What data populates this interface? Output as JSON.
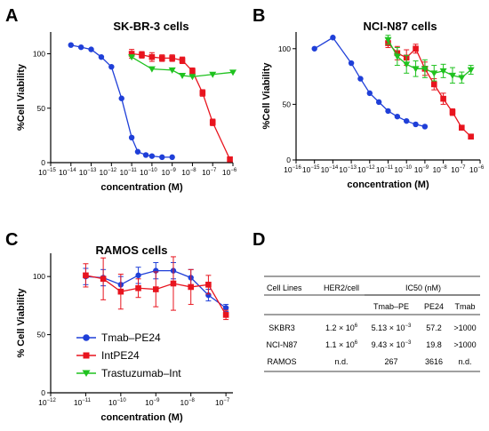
{
  "panels": {
    "A": {
      "letter": "A"
    },
    "B": {
      "letter": "B"
    },
    "C": {
      "letter": "C"
    },
    "D": {
      "letter": "D"
    }
  },
  "chart_data": [
    {
      "id": "A",
      "type": "line",
      "title": "SK-BR-3 cells",
      "xlabel": "concentration (M)",
      "ylabel": "%Cell Viability",
      "x_scale": "log10",
      "xlim_exp": [
        -15,
        -6
      ],
      "x_tick_exps": [
        -15,
        -14,
        -13,
        -12,
        -11,
        -10,
        -9,
        -8,
        -7,
        -6
      ],
      "ylim": [
        0,
        120
      ],
      "y_ticks": [
        0,
        50,
        100
      ],
      "grid": false,
      "series": [
        {
          "key": "tmab_pe24",
          "color": "#1f3fd8",
          "marker": "circle",
          "points": [
            [
              -14,
              108
            ],
            [
              -13.5,
              106
            ],
            [
              -13,
              104
            ],
            [
              -12.5,
              97
            ],
            [
              -12,
              88
            ],
            [
              -11.5,
              59
            ],
            [
              -11,
              23
            ],
            [
              -10.7,
              10
            ],
            [
              -10.3,
              7
            ],
            [
              -10,
              6
            ],
            [
              -9.5,
              5
            ],
            [
              -9,
              5
            ]
          ]
        },
        {
          "key": "intpe24",
          "color": "#e8141e",
          "marker": "square",
          "points": [
            [
              -11,
              100
            ],
            [
              -10.5,
              99
            ],
            [
              -10,
              97
            ],
            [
              -9.5,
              96
            ],
            [
              -9,
              96
            ],
            [
              -8.5,
              94
            ],
            [
              -8,
              84
            ],
            [
              -7.5,
              64
            ],
            [
              -7,
              37
            ],
            [
              -6.15,
              3
            ]
          ],
          "err": [
            4,
            3,
            4,
            3,
            3,
            3,
            3,
            3,
            3,
            2
          ]
        },
        {
          "key": "trastuzumab_int",
          "color": "#1fc21f",
          "marker": "triangle-down",
          "points": [
            [
              -11,
              97
            ],
            [
              -10,
              86
            ],
            [
              -9,
              85
            ],
            [
              -8.5,
              80
            ],
            [
              -8,
              79
            ],
            [
              -7,
              81
            ],
            [
              -6,
              83
            ]
          ]
        }
      ]
    },
    {
      "id": "B",
      "type": "line",
      "title": "NCI-N87 cells",
      "xlabel": "concentration (M)",
      "ylabel": "%Cell Viability",
      "x_scale": "log10",
      "xlim_exp": [
        -16,
        -6
      ],
      "x_tick_exps": [
        -16,
        -15,
        -14,
        -13,
        -12,
        -11,
        -10,
        -9,
        -8,
        -7,
        -6
      ],
      "ylim": [
        0,
        115
      ],
      "y_ticks": [
        0,
        50,
        100
      ],
      "grid": false,
      "series": [
        {
          "key": "tmab_pe24",
          "color": "#1f3fd8",
          "marker": "circle",
          "points": [
            [
              -15,
              100
            ],
            [
              -14,
              110
            ],
            [
              -13,
              87
            ],
            [
              -12.5,
              73
            ],
            [
              -12,
              60
            ],
            [
              -11.5,
              52
            ],
            [
              -11,
              44
            ],
            [
              -10.5,
              39
            ],
            [
              -10,
              35
            ],
            [
              -9.5,
              32
            ],
            [
              -9,
              30
            ]
          ]
        },
        {
          "key": "intpe24",
          "color": "#e8141e",
          "marker": "square",
          "points": [
            [
              -11,
              105
            ],
            [
              -10.5,
              96
            ],
            [
              -10,
              92
            ],
            [
              -9.5,
              100
            ],
            [
              -9,
              82
            ],
            [
              -8.5,
              68
            ],
            [
              -8,
              55
            ],
            [
              -7.5,
              43
            ],
            [
              -7,
              29
            ],
            [
              -6.5,
              21
            ]
          ],
          "err": [
            4,
            6,
            7,
            4,
            6,
            5,
            5,
            3,
            2,
            2
          ]
        },
        {
          "key": "trastuzumab_int",
          "color": "#1fc21f",
          "marker": "triangle-down",
          "points": [
            [
              -11,
              108
            ],
            [
              -10.5,
              93
            ],
            [
              -10,
              86
            ],
            [
              -9.5,
              82
            ],
            [
              -9,
              82
            ],
            [
              -8.5,
              78
            ],
            [
              -8,
              80
            ],
            [
              -7.5,
              76
            ],
            [
              -7,
              74
            ],
            [
              -6.5,
              81
            ]
          ],
          "err": [
            4,
            8,
            8,
            7,
            8,
            7,
            6,
            7,
            5,
            4
          ]
        }
      ]
    },
    {
      "id": "C",
      "type": "line",
      "title": "RAMOS cells",
      "xlabel": "concentration (M)",
      "ylabel": "% Cell Viability",
      "x_scale": "log10",
      "xlim_exp": [
        -12,
        -6.8
      ],
      "x_tick_exps": [
        -12,
        -11,
        -10,
        -9,
        -8,
        -7
      ],
      "ylim": [
        0,
        120
      ],
      "y_ticks": [
        0,
        50,
        100
      ],
      "grid": false,
      "legend_position": "bottom-left",
      "series": [
        {
          "key": "tmab_pe24",
          "name": "Tmab–PE24",
          "color": "#1f3fd8",
          "marker": "circle",
          "points": [
            [
              -11,
              100
            ],
            [
              -10.5,
              99
            ],
            [
              -10,
              93
            ],
            [
              -9.5,
              101
            ],
            [
              -9,
              105
            ],
            [
              -8.5,
              105
            ],
            [
              -8,
              99
            ],
            [
              -7.5,
              84
            ],
            [
              -7,
              73
            ]
          ],
          "err": [
            7,
            7,
            7,
            7,
            7,
            7,
            7,
            5,
            3
          ]
        },
        {
          "key": "intpe24",
          "name": "IntPE24",
          "color": "#e8141e",
          "marker": "square",
          "points": [
            [
              -11,
              101
            ],
            [
              -10.5,
              98
            ],
            [
              -10,
              87
            ],
            [
              -9.5,
              90
            ],
            [
              -9,
              89
            ],
            [
              -8.5,
              94
            ],
            [
              -8,
              91
            ],
            [
              -7.5,
              93
            ],
            [
              -7,
              67
            ]
          ],
          "err": [
            10,
            18,
            15,
            8,
            15,
            23,
            15,
            8,
            4
          ]
        },
        {
          "key": "trastuzumab_int",
          "name": "Trastuzumab–Int",
          "color": "#1fc21f",
          "marker": "triangle-down",
          "points": []
        }
      ]
    },
    {
      "id": "D",
      "type": "table",
      "group_header": "IC50 (nM)",
      "columns": [
        "Cell Lines",
        "HER2/cell",
        "Tmab–PE",
        "PE24",
        "Tmab"
      ],
      "rows": [
        {
          "cell_line": "SKBR3",
          "her2_base": "1.2 × 10",
          "her2_exp": "6",
          "tmab_pe_base": "5.13 × 10",
          "tmab_pe_exp": "−3",
          "pe24": "57.2",
          "tmab": ">1000"
        },
        {
          "cell_line": "NCI-N87",
          "her2_base": "1.1 × 10",
          "her2_exp": "6",
          "tmab_pe_base": "9.43 × 10",
          "tmab_pe_exp": "−3",
          "pe24": "19.8",
          "tmab": ">1000"
        },
        {
          "cell_line": "RAMOS",
          "her2_base": "n.d.",
          "her2_exp": "",
          "tmab_pe_base": "267",
          "tmab_pe_exp": "",
          "pe24": "3616",
          "tmab": "n.d."
        }
      ]
    }
  ]
}
